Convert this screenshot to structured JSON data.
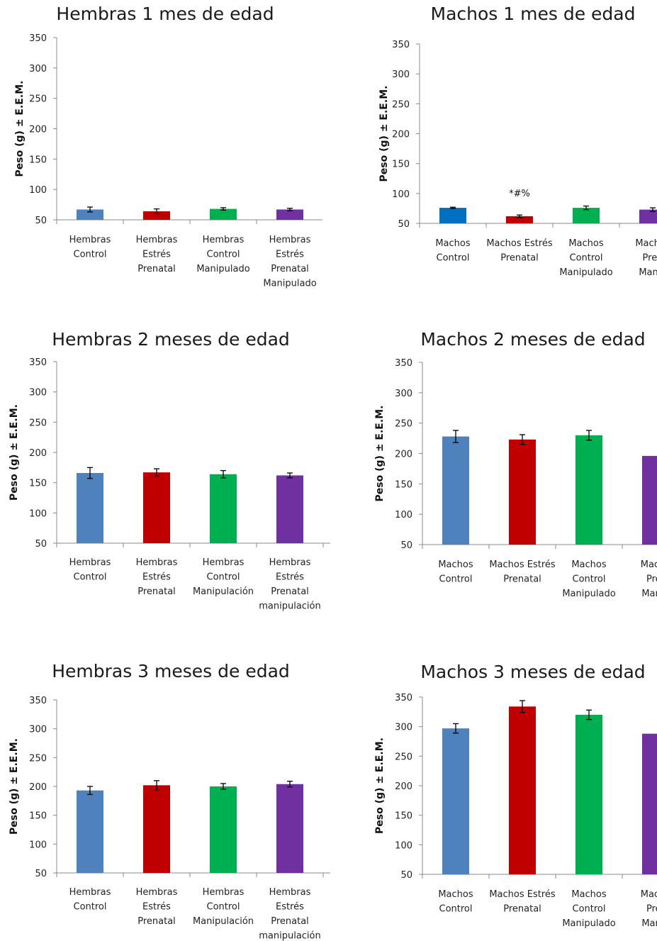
{
  "colors": {
    "control": "#4f81bd",
    "estres": "#c00000",
    "control_manip": "#00b050",
    "estres_manip": "#7030a0"
  },
  "chart_data": [
    {
      "type": "bar",
      "title": "Hembras 1 mes de edad",
      "ylabel": "Peso (g) ± E.E.M.",
      "ylim": [
        50,
        350
      ],
      "yticks": [
        50,
        100,
        150,
        200,
        250,
        300,
        350
      ],
      "categories": [
        [
          "Hembras",
          "Control"
        ],
        [
          "Hembras",
          "Estrés",
          "Prenatal"
        ],
        [
          "Hembras",
          "Control",
          "Manipulado"
        ],
        [
          "Hembras",
          "Estrés",
          "Prenatal",
          "Manipulado"
        ]
      ],
      "values": [
        67,
        64,
        68,
        67
      ],
      "errors": [
        4,
        4,
        2,
        2
      ],
      "colors": [
        "#4f81bd",
        "#c00000",
        "#00b050",
        "#7030a0"
      ],
      "annotations": [],
      "grid": false
    },
    {
      "type": "bar",
      "title": "Machos 1 mes de edad",
      "ylabel": "Peso (g) ± E.E.M.",
      "ylim": [
        50,
        350
      ],
      "yticks": [
        50,
        100,
        150,
        200,
        250,
        300,
        350
      ],
      "categories": [
        [
          "Machos",
          "Control"
        ],
        [
          "Machos Estrés",
          "Prenatal"
        ],
        [
          "Machos",
          "Control",
          "Manipulado"
        ],
        [
          "Machos",
          "Pren",
          "Manip"
        ]
      ],
      "values": [
        76,
        62,
        76,
        73
      ],
      "errors": [
        1,
        2,
        3,
        3
      ],
      "colors": [
        "#0070c0",
        "#c00000",
        "#00b050",
        "#7030a0"
      ],
      "annotations": [
        {
          "index": 1,
          "text": "*#%"
        }
      ],
      "grid": false
    },
    {
      "type": "bar",
      "title": "Hembras 2 meses de edad",
      "ylabel": "Peso (g) ± E.E.M.",
      "ylim": [
        50,
        350
      ],
      "yticks": [
        50,
        100,
        150,
        200,
        250,
        300,
        350
      ],
      "categories": [
        [
          "Hembras",
          "Control"
        ],
        [
          "Hembras",
          "Estrés",
          "Prenatal"
        ],
        [
          "Hembras",
          "Control",
          "Manipulación"
        ],
        [
          "Hembras",
          "Estrés",
          "Prenatal",
          "manipulación"
        ]
      ],
      "values": [
        166,
        167,
        164,
        162
      ],
      "errors": [
        9,
        6,
        6,
        4
      ],
      "colors": [
        "#4f81bd",
        "#c00000",
        "#00b050",
        "#7030a0"
      ],
      "annotations": [],
      "grid": false
    },
    {
      "type": "bar",
      "title": "Machos 2 meses de edad",
      "ylabel": "Peso (g) ± E.E.M.",
      "ylim": [
        50,
        350
      ],
      "yticks": [
        50,
        100,
        150,
        200,
        250,
        300,
        350
      ],
      "categories": [
        [
          "Machos",
          "Control"
        ],
        [
          "Machos Estrés",
          "Prenatal"
        ],
        [
          "Machos",
          "Control",
          "Manipulado"
        ],
        [
          "Macho",
          "Prer",
          "Manip"
        ]
      ],
      "values": [
        228,
        223,
        230,
        196
      ],
      "errors": [
        10,
        8,
        8,
        0
      ],
      "colors": [
        "#4f81bd",
        "#c00000",
        "#00b050",
        "#7030a0"
      ],
      "annotations": [],
      "grid": false
    },
    {
      "type": "bar",
      "title": "Hembras 3 meses de edad",
      "ylabel": "Peso (g) ± E.E.M.",
      "ylim": [
        50,
        350
      ],
      "yticks": [
        50,
        100,
        150,
        200,
        250,
        300,
        350
      ],
      "categories": [
        [
          "Hembras",
          "Control"
        ],
        [
          "Hembras",
          "Estrés",
          "Prenatal"
        ],
        [
          "Hembras",
          "Control",
          "Manipulación"
        ],
        [
          "Hembras",
          "Estrés",
          "Prenatal",
          "manipulación"
        ]
      ],
      "values": [
        193,
        202,
        200,
        204
      ],
      "errors": [
        7,
        8,
        5,
        5
      ],
      "colors": [
        "#4f81bd",
        "#c00000",
        "#00b050",
        "#7030a0"
      ],
      "annotations": [],
      "grid": false
    },
    {
      "type": "bar",
      "title": "Machos 3 meses de edad",
      "ylabel": "Peso (g) ± E.E.M.",
      "ylim": [
        50,
        350
      ],
      "yticks": [
        50,
        100,
        150,
        200,
        250,
        300,
        350
      ],
      "categories": [
        [
          "Machos",
          "Control"
        ],
        [
          "Machos Estrés",
          "Prenatal"
        ],
        [
          "Machos",
          "Control",
          "Manipulado"
        ],
        [
          "Macho",
          "Prer",
          "Manip"
        ]
      ],
      "values": [
        297,
        334,
        320,
        288
      ],
      "errors": [
        8,
        10,
        8,
        0
      ],
      "colors": [
        "#4f81bd",
        "#c00000",
        "#00b050",
        "#7030a0"
      ],
      "annotations": [],
      "grid": false
    }
  ]
}
